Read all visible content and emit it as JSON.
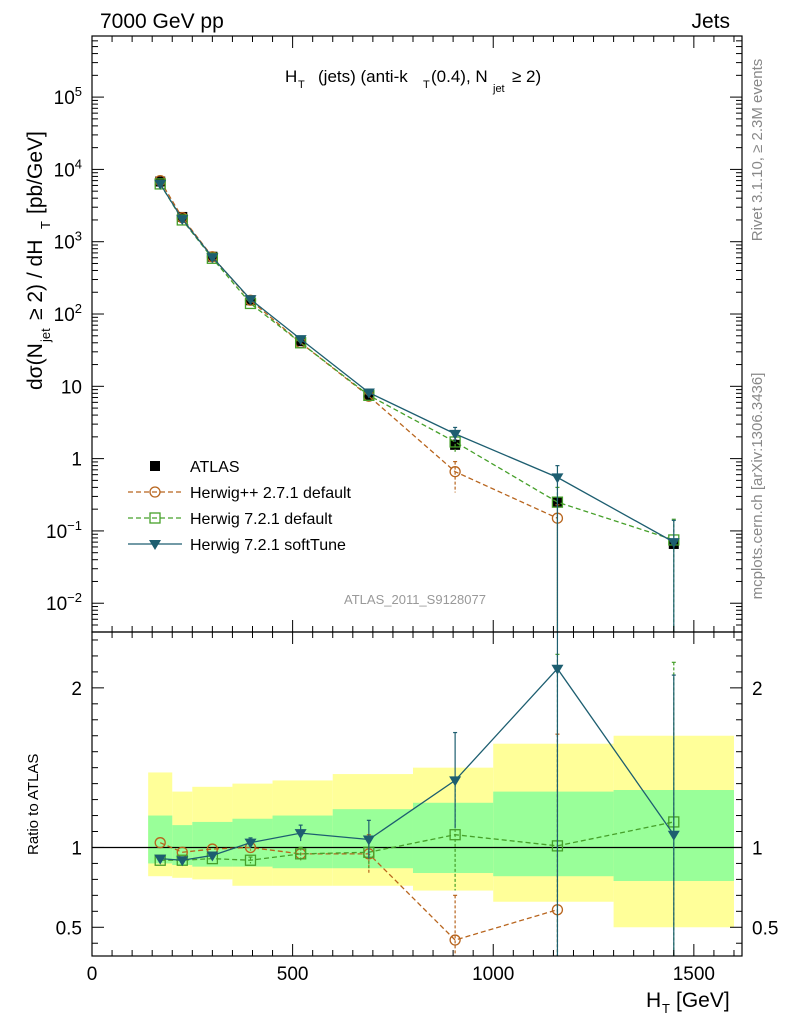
{
  "header": {
    "left": "7000 GeV pp",
    "right": "Jets"
  },
  "side_labels": {
    "rivet": "Rivet 3.1.10, ≥ 2.3M events",
    "mcplots": "mcplots.cern.ch [arXiv:1306.3436]"
  },
  "analysis_id": "ATLAS_2011_S9128077",
  "chart_data": [
    {
      "type": "scatter",
      "panel": "main",
      "title": "H_T (jets) (anti-k_T(0.4), N_jet ≥ 2)",
      "ylabel": "dσ(N_jet ≥ 2) / dH_T [pb/GeV]",
      "yscale": "log",
      "xlim": [
        0,
        1620
      ],
      "ylim": [
        0.004,
        700000
      ],
      "y_ticks": [
        {
          "v": 0.01,
          "label": "10^-2"
        },
        {
          "v": 0.1,
          "label": "10^-1"
        },
        {
          "v": 1,
          "label": "1"
        },
        {
          "v": 10,
          "label": "10"
        },
        {
          "v": 100,
          "label": "10^2"
        },
        {
          "v": 1000,
          "label": "10^3"
        },
        {
          "v": 10000,
          "label": "10^4"
        },
        {
          "v": 100000,
          "label": "10^5"
        }
      ],
      "legend_position": "lower-left",
      "x": [
        170,
        225,
        300,
        395,
        520,
        690,
        905,
        1160,
        1450
      ],
      "series": [
        {
          "name": "ATLAS",
          "color": "#000000",
          "marker": "filled-square",
          "line": "none",
          "values": [
            6800,
            2200,
            620,
            155,
            42,
            7.6,
            1.55,
            0.25,
            0.066
          ],
          "err_up": [
            0,
            0,
            0,
            0,
            0,
            0,
            0.25,
            0.03,
            0.01
          ],
          "err_down": [
            0,
            0,
            0,
            0,
            0,
            0,
            0.25,
            0.03,
            0.01
          ]
        },
        {
          "name": "Herwig++ 2.7.1 default",
          "color": "#b8651e",
          "marker": "open-circle",
          "line": "dashed",
          "values": [
            7000,
            2150,
            620,
            155,
            40,
            7.3,
            0.66,
            0.15,
            null
          ],
          "err_up": [
            0,
            0,
            0,
            0,
            0,
            0,
            0.25,
            0.08,
            0
          ],
          "err_down": [
            0,
            0,
            0,
            0,
            0,
            0,
            0.32,
            0.148,
            0
          ]
        },
        {
          "name": "Herwig 7.2.1 default",
          "color": "#46a02a",
          "marker": "open-square",
          "line": "dashed",
          "values": [
            6300,
            2000,
            590,
            140,
            40,
            7.5,
            1.7,
            0.25,
            0.075
          ],
          "err_up": [
            0,
            0,
            0,
            0,
            0,
            0,
            0.5,
            0.15,
            0.07
          ],
          "err_down": [
            0,
            0,
            0,
            0,
            0,
            0,
            0.5,
            0.249,
            0.074
          ]
        },
        {
          "name": "Herwig 7.2.1 softTune",
          "color": "#1d5e70",
          "marker": "filled-triangle-down",
          "line": "solid",
          "values": [
            6300,
            2050,
            610,
            160,
            45,
            8.2,
            2.2,
            0.55,
            0.07
          ],
          "err_up": [
            0,
            0,
            0,
            0,
            0,
            0,
            0.5,
            0.25,
            0.07
          ],
          "err_down": [
            0,
            0,
            0,
            0,
            0,
            0,
            0.5,
            0.549,
            0.069
          ]
        }
      ]
    },
    {
      "type": "scatter",
      "panel": "ratio",
      "xlabel": "H_T [GeV]",
      "ylabel": "Ratio to ATLAS",
      "xlim": [
        0,
        1620
      ],
      "ylim": [
        0.32,
        2.35
      ],
      "x_ticks": [
        0,
        500,
        1000,
        1500
      ],
      "y_ticks": [
        0.5,
        1,
        2
      ],
      "bands": {
        "edges": [
          140,
          200,
          250,
          350,
          450,
          600,
          800,
          1000,
          1300,
          1600
        ],
        "outer": {
          "color": "#ffff99",
          "low": [
            0.82,
            0.81,
            0.8,
            0.76,
            0.76,
            0.76,
            0.73,
            0.66,
            0.5
          ],
          "high": [
            1.47,
            1.35,
            1.38,
            1.4,
            1.42,
            1.46,
            1.5,
            1.65,
            1.7
          ]
        },
        "inner": {
          "color": "#99ff99",
          "low": [
            0.9,
            0.89,
            0.88,
            0.88,
            0.87,
            0.87,
            0.84,
            0.82,
            0.79
          ],
          "high": [
            1.2,
            1.14,
            1.16,
            1.18,
            1.2,
            1.24,
            1.28,
            1.35,
            1.36
          ]
        }
      },
      "x": [
        170,
        225,
        300,
        395,
        520,
        690,
        905,
        1160,
        1450
      ],
      "series": [
        {
          "name": "Herwig++ 2.7.1 default",
          "color": "#b8651e",
          "marker": "open-circle",
          "line": "dashed",
          "values": [
            1.03,
            0.97,
            0.99,
            1.0,
            0.96,
            0.96,
            0.42,
            0.61,
            null
          ],
          "err_up": [
            0,
            0,
            0,
            0.02,
            0.04,
            0.12,
            0.28,
            1.1,
            0
          ],
          "err_down": [
            0,
            0,
            0,
            0.02,
            0.04,
            0.12,
            0.1,
            0.4,
            0
          ]
        },
        {
          "name": "Herwig 7.2.1 default",
          "color": "#46a02a",
          "marker": "open-square",
          "line": "dashed",
          "values": [
            0.92,
            0.92,
            0.93,
            0.92,
            0.96,
            0.97,
            1.08,
            1.01,
            1.16
          ],
          "err_up": [
            0,
            0,
            0,
            0.02,
            0.04,
            0.1,
            0.35,
            1.2,
            1.0
          ],
          "err_down": [
            0,
            0,
            0,
            0.02,
            0.04,
            0.1,
            0.35,
            0.7,
            0.9
          ]
        },
        {
          "name": "Herwig 7.2.1 softTune",
          "color": "#1d5e70",
          "marker": "filled-triangle-down",
          "line": "solid",
          "values": [
            0.93,
            0.92,
            0.95,
            1.03,
            1.09,
            1.05,
            1.42,
            2.12,
            1.08
          ],
          "err_up": [
            0,
            0,
            0,
            0.03,
            0.05,
            0.12,
            0.3,
            1.0,
            1.0
          ],
          "err_down": [
            0,
            0,
            0,
            0.03,
            0.05,
            0.12,
            0.3,
            1.9,
            0.8
          ]
        }
      ]
    }
  ]
}
